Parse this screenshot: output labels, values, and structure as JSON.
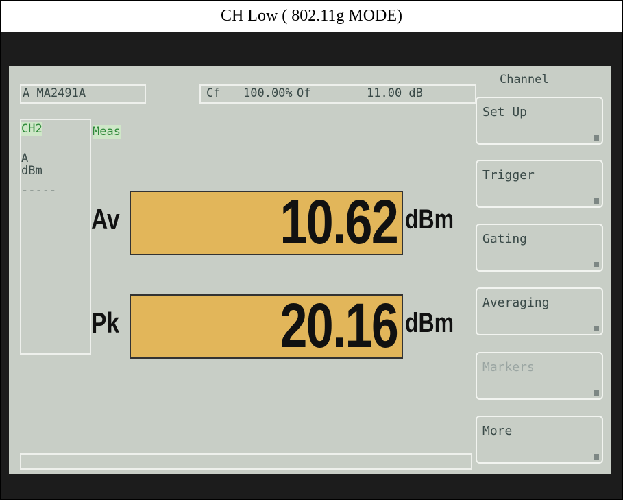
{
  "header": {
    "title": "CH Low ( 802.11g MODE)"
  },
  "status_bar": {
    "sensor": "A MA2491A",
    "cf_label": "Cf",
    "cf_value": "100.00%",
    "of_label": "Of",
    "of_value": "11.00 dB"
  },
  "channel_panel": {
    "channel": "CH2",
    "sensor": "A",
    "unit": "dBm",
    "marker": "-----"
  },
  "meas_label": "Meas",
  "readings": [
    {
      "label": "Av",
      "value": "10.62",
      "unit": "dBm"
    },
    {
      "label": "Pk",
      "value": "20.16",
      "unit": "dBm"
    }
  ],
  "menu": {
    "title": "Channel",
    "keys": [
      {
        "label": "Set Up",
        "disabled": false
      },
      {
        "label": "Trigger",
        "disabled": false
      },
      {
        "label": "Gating",
        "disabled": false
      },
      {
        "label": "Averaging",
        "disabled": false
      },
      {
        "label": "Markers",
        "disabled": true
      },
      {
        "label": "More",
        "disabled": false
      }
    ]
  }
}
